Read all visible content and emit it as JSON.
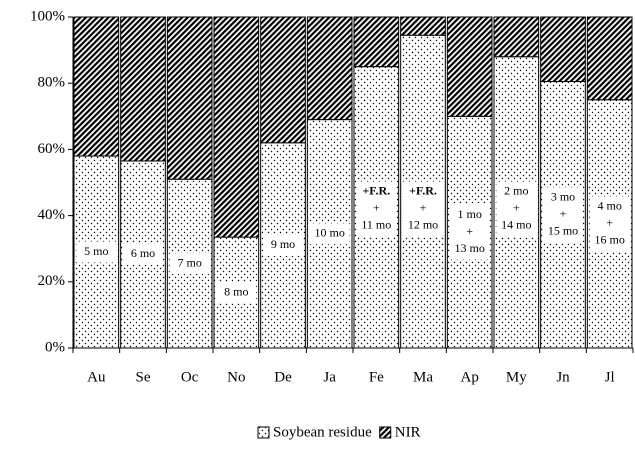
{
  "chart_data": {
    "type": "stacked_bar",
    "categories": [
      "Au",
      "Se",
      "Oc",
      "No",
      "De",
      "Ja",
      "Fe",
      "Ma",
      "Ap",
      "My",
      "Jn",
      "Jl"
    ],
    "series": [
      {
        "name": "Soybean residue",
        "pattern": "dots",
        "color": "#000000",
        "values": [
          58,
          56.5,
          51,
          33.5,
          62,
          69,
          85,
          94.5,
          70,
          88,
          80.5,
          75
        ]
      },
      {
        "name": "NIR",
        "pattern": "hatch",
        "color": "#000000",
        "values": [
          42,
          43.5,
          49,
          66.5,
          38,
          31,
          15,
          5.5,
          30,
          12,
          19.5,
          25
        ]
      }
    ],
    "annotations": [
      [
        "5 mo"
      ],
      [
        "6 mo"
      ],
      [
        "7 mo"
      ],
      [
        "8 mo"
      ],
      [
        "9 mo"
      ],
      [
        "10 mo"
      ],
      [
        "+F.R.",
        "+",
        "11 mo"
      ],
      [
        "+F.R.",
        "+",
        "12 mo"
      ],
      [
        "1 mo",
        "+",
        "13 mo"
      ],
      [
        "2 mo",
        "+",
        "14 mo"
      ],
      [
        "3 mo",
        "+",
        "15 mo"
      ],
      [
        "4 mo",
        "+",
        "16 mo"
      ]
    ],
    "ylim": [
      0,
      100
    ],
    "yticks": [
      {
        "value": 0,
        "label": "0%"
      },
      {
        "value": 20,
        "label": "20%"
      },
      {
        "value": 40,
        "label": "40%"
      },
      {
        "value": 60,
        "label": "60%"
      },
      {
        "value": 80,
        "label": "80%"
      },
      {
        "value": 100,
        "label": "100%"
      }
    ],
    "legend": "bottom"
  }
}
